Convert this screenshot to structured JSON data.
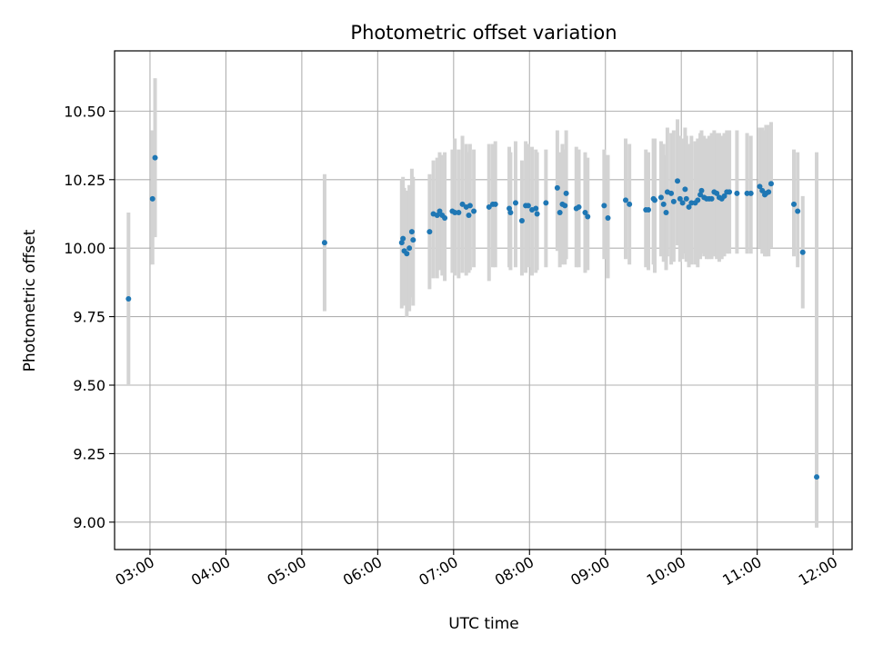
{
  "chart_data": {
    "type": "scatter",
    "title": "Photometric offset variation",
    "xlabel": "UTC time",
    "ylabel": "Photometric offset",
    "xlim": [
      "02:32",
      "12:15"
    ],
    "ylim": [
      8.9,
      10.72
    ],
    "x_ticks": [
      "03:00",
      "04:00",
      "05:00",
      "06:00",
      "07:00",
      "08:00",
      "09:00",
      "10:00",
      "11:00",
      "12:00"
    ],
    "y_ticks": [
      9.0,
      9.25,
      9.5,
      9.75,
      10.0,
      10.25,
      10.5
    ],
    "y_tick_labels": [
      "9.00",
      "9.25",
      "9.50",
      "9.75",
      "10.00",
      "10.25",
      "10.50"
    ],
    "grid": true,
    "colors": {
      "point": "#1f77b4",
      "error_bar": "#d3d3d3",
      "grid": "#b0b0b0"
    },
    "series": [
      {
        "points": [
          [
            "02:43",
            9.815,
            9.5,
            10.13
          ],
          [
            "03:02",
            10.18,
            9.94,
            10.43
          ],
          [
            "03:04",
            10.33,
            10.04,
            10.62
          ],
          [
            "05:18",
            10.02,
            9.77,
            10.27
          ],
          [
            "06:19",
            10.02,
            9.78,
            10.25
          ],
          [
            "06:20",
            10.035,
            9.8,
            10.26
          ],
          [
            "06:21",
            9.99,
            9.79,
            10.22
          ],
          [
            "06:23",
            9.98,
            9.75,
            10.21
          ],
          [
            "06:25",
            10.0,
            9.77,
            10.23
          ],
          [
            "06:27",
            10.06,
            9.82,
            10.29
          ],
          [
            "06:28",
            10.03,
            9.79,
            10.26
          ],
          [
            "06:41",
            10.06,
            9.85,
            10.27
          ],
          [
            "06:44",
            10.125,
            9.89,
            10.32
          ],
          [
            "06:47",
            10.12,
            9.89,
            10.33
          ],
          [
            "06:49",
            10.135,
            9.92,
            10.35
          ],
          [
            "06:51",
            10.12,
            9.9,
            10.34
          ],
          [
            "06:53",
            10.11,
            9.88,
            10.35
          ],
          [
            "06:59",
            10.135,
            9.91,
            10.36
          ],
          [
            "07:01",
            10.13,
            9.9,
            10.4
          ],
          [
            "07:04",
            10.13,
            9.89,
            10.36
          ],
          [
            "07:07",
            10.16,
            9.91,
            10.41
          ],
          [
            "07:10",
            10.15,
            9.9,
            10.38
          ],
          [
            "07:12",
            10.12,
            9.91,
            10.35
          ],
          [
            "07:13",
            10.155,
            9.92,
            10.38
          ],
          [
            "07:16",
            10.135,
            9.93,
            10.36
          ],
          [
            "07:28",
            10.15,
            9.88,
            10.38
          ],
          [
            "07:31",
            10.16,
            9.93,
            10.38
          ],
          [
            "07:33",
            10.16,
            9.93,
            10.39
          ],
          [
            "07:44",
            10.145,
            9.93,
            10.37
          ],
          [
            "07:45",
            10.13,
            9.92,
            10.35
          ],
          [
            "07:49",
            10.165,
            9.93,
            10.39
          ],
          [
            "07:54",
            10.1,
            9.9,
            10.32
          ],
          [
            "07:57",
            10.155,
            9.91,
            10.39
          ],
          [
            "07:59",
            10.155,
            9.93,
            10.38
          ],
          [
            "08:02",
            10.14,
            9.9,
            10.37
          ],
          [
            "08:05",
            10.145,
            9.91,
            10.36
          ],
          [
            "08:06",
            10.125,
            9.92,
            10.35
          ],
          [
            "08:13",
            10.165,
            9.93,
            10.36
          ],
          [
            "08:22",
            10.22,
            9.99,
            10.43
          ],
          [
            "08:24",
            10.13,
            9.93,
            10.35
          ],
          [
            "08:26",
            10.16,
            9.94,
            10.38
          ],
          [
            "08:28",
            10.155,
            9.94,
            10.36
          ],
          [
            "08:29",
            10.2,
            9.96,
            10.43
          ],
          [
            "08:37",
            10.145,
            9.93,
            10.37
          ],
          [
            "08:39",
            10.15,
            9.93,
            10.36
          ],
          [
            "08:44",
            10.13,
            9.91,
            10.35
          ],
          [
            "08:46",
            10.115,
            9.92,
            10.33
          ],
          [
            "08:59",
            10.155,
            9.96,
            10.36
          ],
          [
            "09:02",
            10.11,
            9.89,
            10.34
          ],
          [
            "09:16",
            10.175,
            9.96,
            10.4
          ],
          [
            "09:19",
            10.16,
            9.94,
            10.38
          ],
          [
            "09:32",
            10.14,
            9.93,
            10.36
          ],
          [
            "09:34",
            10.14,
            9.92,
            10.35
          ],
          [
            "09:38",
            10.18,
            9.94,
            10.4
          ],
          [
            "09:39",
            10.175,
            9.91,
            10.4
          ],
          [
            "09:44",
            10.185,
            9.97,
            10.39
          ],
          [
            "09:46",
            10.16,
            9.95,
            10.38
          ],
          [
            "09:48",
            10.13,
            9.92,
            10.34
          ],
          [
            "09:49",
            10.205,
            9.97,
            10.44
          ],
          [
            "09:52",
            10.2,
            9.94,
            10.42
          ],
          [
            "09:54",
            10.17,
            9.95,
            10.43
          ],
          [
            "09:57",
            10.245,
            10.01,
            10.47
          ],
          [
            "09:59",
            10.18,
            9.95,
            10.41
          ],
          [
            "10:01",
            10.165,
            9.96,
            10.4
          ],
          [
            "10:03",
            10.215,
            9.98,
            10.44
          ],
          [
            "10:04",
            10.18,
            9.95,
            10.41
          ],
          [
            "10:06",
            10.15,
            9.93,
            10.38
          ],
          [
            "10:08",
            10.165,
            9.94,
            10.41
          ],
          [
            "10:11",
            10.165,
            9.94,
            10.39
          ],
          [
            "10:13",
            10.175,
            9.93,
            10.4
          ],
          [
            "10:15",
            10.195,
            9.96,
            10.42
          ],
          [
            "10:16",
            10.21,
            9.98,
            10.43
          ],
          [
            "10:18",
            10.185,
            9.97,
            10.41
          ],
          [
            "10:20",
            10.18,
            9.96,
            10.4
          ],
          [
            "10:22",
            10.18,
            9.96,
            10.41
          ],
          [
            "10:24",
            10.18,
            9.96,
            10.42
          ],
          [
            "10:26",
            10.205,
            9.97,
            10.43
          ],
          [
            "10:28",
            10.2,
            9.96,
            10.42
          ],
          [
            "10:30",
            10.185,
            9.95,
            10.42
          ],
          [
            "10:32",
            10.18,
            9.96,
            10.41
          ],
          [
            "10:34",
            10.19,
            9.97,
            10.42
          ],
          [
            "10:36",
            10.205,
            9.98,
            10.43
          ],
          [
            "10:38",
            10.205,
            9.98,
            10.43
          ],
          [
            "10:44",
            10.2,
            9.98,
            10.43
          ],
          [
            "10:52",
            10.2,
            9.98,
            10.42
          ],
          [
            "10:55",
            10.2,
            9.98,
            10.41
          ],
          [
            "11:02",
            10.225,
            10.0,
            10.44
          ],
          [
            "11:04",
            10.21,
            9.98,
            10.44
          ],
          [
            "11:06",
            10.195,
            9.97,
            10.43
          ],
          [
            "11:07",
            10.2,
            9.97,
            10.45
          ],
          [
            "11:09",
            10.205,
            9.97,
            10.45
          ],
          [
            "11:11",
            10.235,
            10.0,
            10.46
          ],
          [
            "11:29",
            10.16,
            9.97,
            10.36
          ],
          [
            "11:32",
            10.135,
            9.93,
            10.35
          ],
          [
            "11:36",
            9.985,
            9.78,
            10.19
          ],
          [
            "11:47",
            9.165,
            8.98,
            10.35
          ]
        ]
      }
    ]
  }
}
